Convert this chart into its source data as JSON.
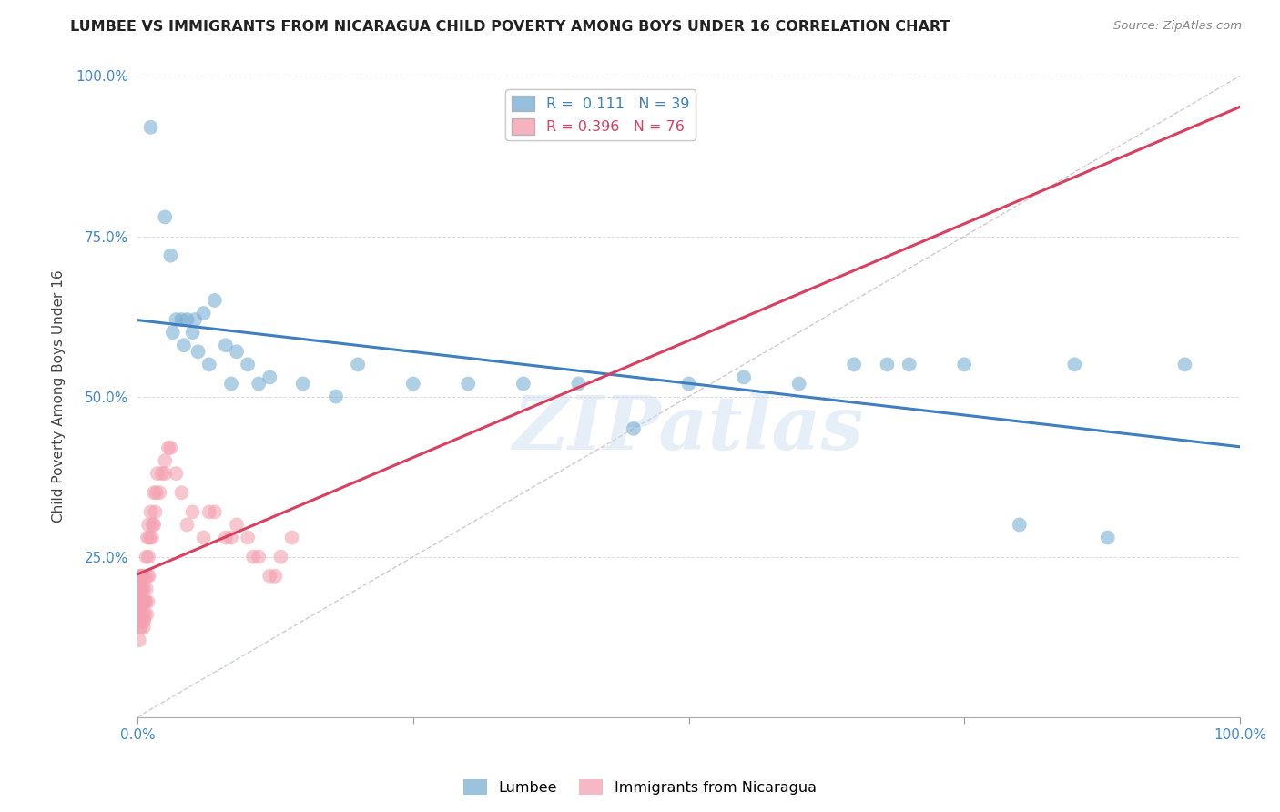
{
  "title": "LUMBEE VS IMMIGRANTS FROM NICARAGUA CHILD POVERTY AMONG BOYS UNDER 16 CORRELATION CHART",
  "source": "Source: ZipAtlas.com",
  "ylabel": "Child Poverty Among Boys Under 16",
  "lumbee_color": "#7BAFD4",
  "nicaragua_color": "#F4A0B0",
  "lumbee_line_color": "#3D7FC1",
  "nicaragua_line_color": "#D94060",
  "legend_lumbee_label": "Lumbee",
  "legend_nicaragua_label": "Immigrants from Nicaragua",
  "R_lumbee": "0.111",
  "N_lumbee": "39",
  "R_nicaragua": "0.396",
  "N_nicaragua": "76",
  "watermark": "ZIPatlas",
  "background_color": "#FFFFFF",
  "grid_color": "#CCCCCC",
  "title_color": "#222222",
  "axis_label_color": "#444444",
  "tick_color": "#4488CC",
  "diag_color": "#CCBBBB",
  "lumbee_x": [
    1.2,
    2.5,
    3.0,
    3.5,
    4.0,
    4.5,
    5.0,
    5.5,
    6.0,
    7.0,
    8.0,
    9.0,
    10.0,
    12.0,
    15.0,
    20.0,
    25.0,
    30.0,
    40.0,
    50.0,
    55.0,
    60.0,
    65.0,
    70.0,
    75.0,
    80.0,
    88.0,
    3.2,
    4.2,
    5.2,
    6.5,
    8.5,
    11.0,
    18.0,
    35.0,
    45.0,
    68.0,
    85.0,
    95.0
  ],
  "lumbee_y": [
    92.0,
    78.0,
    72.0,
    62.0,
    62.0,
    62.0,
    60.0,
    57.0,
    63.0,
    65.0,
    58.0,
    57.0,
    55.0,
    53.0,
    52.0,
    55.0,
    52.0,
    52.0,
    52.0,
    52.0,
    53.0,
    52.0,
    55.0,
    55.0,
    55.0,
    30.0,
    28.0,
    60.0,
    58.0,
    62.0,
    55.0,
    52.0,
    52.0,
    50.0,
    52.0,
    45.0,
    55.0,
    55.0,
    55.0
  ],
  "nicaragua_x": [
    0.1,
    0.1,
    0.1,
    0.1,
    0.15,
    0.15,
    0.2,
    0.2,
    0.2,
    0.25,
    0.25,
    0.3,
    0.3,
    0.3,
    0.35,
    0.35,
    0.4,
    0.4,
    0.45,
    0.45,
    0.5,
    0.5,
    0.5,
    0.55,
    0.6,
    0.6,
    0.7,
    0.7,
    0.8,
    0.8,
    0.9,
    0.9,
    1.0,
    1.0,
    1.1,
    1.2,
    1.3,
    1.4,
    1.5,
    1.6,
    1.7,
    1.8,
    2.0,
    2.2,
    2.5,
    2.8,
    3.0,
    3.5,
    4.0,
    5.0,
    6.0,
    7.0,
    8.0,
    9.0,
    10.0,
    11.0,
    12.0,
    13.0,
    14.0,
    0.15,
    0.25,
    0.35,
    0.45,
    0.55,
    0.65,
    0.75,
    0.85,
    0.95,
    1.05,
    1.5,
    2.5,
    4.5,
    6.5,
    8.5,
    10.5,
    12.5
  ],
  "nicaragua_y": [
    20.0,
    18.0,
    16.0,
    15.0,
    22.0,
    18.0,
    20.0,
    18.0,
    15.0,
    22.0,
    18.0,
    20.0,
    16.0,
    14.0,
    18.0,
    15.0,
    22.0,
    18.0,
    20.0,
    16.0,
    22.0,
    18.0,
    15.0,
    20.0,
    18.0,
    15.0,
    22.0,
    18.0,
    25.0,
    20.0,
    28.0,
    22.0,
    30.0,
    25.0,
    28.0,
    32.0,
    28.0,
    30.0,
    35.0,
    32.0,
    35.0,
    38.0,
    35.0,
    38.0,
    40.0,
    42.0,
    42.0,
    38.0,
    35.0,
    32.0,
    28.0,
    32.0,
    28.0,
    30.0,
    28.0,
    25.0,
    22.0,
    25.0,
    28.0,
    12.0,
    14.0,
    16.0,
    18.0,
    14.0,
    16.0,
    18.0,
    16.0,
    18.0,
    22.0,
    30.0,
    38.0,
    30.0,
    32.0,
    28.0,
    25.0,
    22.0
  ]
}
